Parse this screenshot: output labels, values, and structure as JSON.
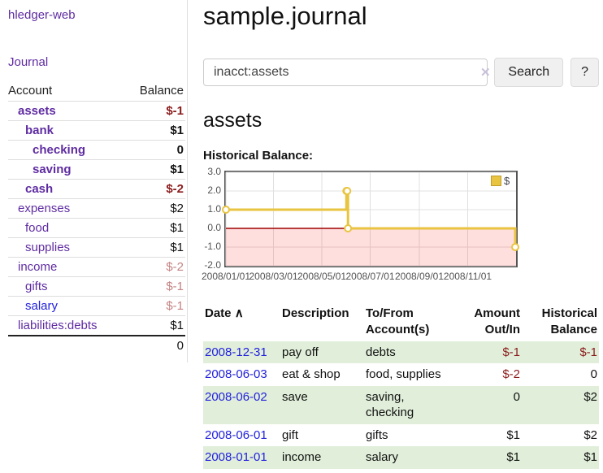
{
  "sidebar": {
    "app_title": "hledger-web",
    "journal_label": "Journal",
    "accounts_table": {
      "header_account": "Account",
      "header_balance": "Balance",
      "rows": [
        {
          "name": "assets",
          "depth": 1,
          "bold": true,
          "link": "purple",
          "balance": "$-1",
          "balance_style": "neg-strong"
        },
        {
          "name": "bank",
          "depth": 2,
          "bold": true,
          "link": "purple",
          "balance": "$1",
          "balance_style": "pos"
        },
        {
          "name": "checking",
          "depth": 3,
          "bold": true,
          "link": "purple",
          "balance": "0",
          "balance_style": "pos"
        },
        {
          "name": "saving",
          "depth": 3,
          "bold": true,
          "link": "purple",
          "balance": "$1",
          "balance_style": "pos"
        },
        {
          "name": "cash",
          "depth": 2,
          "bold": true,
          "link": "purple",
          "balance": "$-2",
          "balance_style": "neg-strong"
        },
        {
          "name": "expenses",
          "depth": 1,
          "bold": false,
          "link": "purple",
          "balance": "$2",
          "balance_style": "pos"
        },
        {
          "name": "food",
          "depth": 2,
          "bold": false,
          "link": "purple",
          "balance": "$1",
          "balance_style": "pos"
        },
        {
          "name": "supplies",
          "depth": 2,
          "bold": false,
          "link": "purple",
          "balance": "$1",
          "balance_style": "pos"
        },
        {
          "name": "income",
          "depth": 1,
          "bold": false,
          "link": "purple",
          "balance": "$-2",
          "balance_style": "neg-soft"
        },
        {
          "name": "gifts",
          "depth": 2,
          "bold": false,
          "link": "purple",
          "balance": "$-1",
          "balance_style": "neg-soft"
        },
        {
          "name": "salary",
          "depth": 2,
          "bold": false,
          "link": "blue",
          "balance": "$-1",
          "balance_style": "neg-soft"
        },
        {
          "name": "liabilities:debts",
          "depth": 1,
          "bold": false,
          "link": "purple",
          "balance": "$1",
          "balance_style": "pos"
        }
      ],
      "total": "0"
    }
  },
  "header": {
    "title": "sample.journal"
  },
  "search": {
    "value": "inacct:assets",
    "clear_icon": "✕",
    "button_label": "Search",
    "help_label": "?"
  },
  "account_page": {
    "title": "assets",
    "chart_label": "Historical Balance:"
  },
  "chart_data": {
    "type": "line",
    "title": "Historical Balance",
    "step": true,
    "series": [
      {
        "name": "$",
        "color": "#e9c440",
        "points": [
          [
            "2008-01-01",
            1
          ],
          [
            "2008-06-01",
            2
          ],
          [
            "2008-06-02",
            2
          ],
          [
            "2008-06-03",
            0
          ],
          [
            "2008-12-31",
            -1
          ]
        ]
      }
    ],
    "x_ticks": [
      "2008/01/01",
      "2008/03/01",
      "2008/05/01",
      "2008/07/01",
      "2008/09/01",
      "2008/11/01"
    ],
    "y_ticks": [
      "3.0",
      "2.0",
      "1.0",
      "0.0",
      "-1.0",
      "-2.0"
    ],
    "ylim": [
      -2,
      3
    ],
    "xlim": [
      "2008-01-01",
      "2009-01-01"
    ],
    "grid": true,
    "gridline_color": "#e0e0e0",
    "negative_region_color": "rgba(255,0,0,0.13)",
    "zero_line_color": "#a00000",
    "legend_position": "top-right"
  },
  "register_table": {
    "headers": {
      "date": "Date",
      "sort_indicator": "∧",
      "description": "Description",
      "accounts": "To/From Account(s)",
      "amount": "Amount Out/In",
      "balance": "Historical Balance"
    },
    "rows": [
      {
        "date": "2008-12-31",
        "description": "pay off",
        "accounts": "debts",
        "amount": "$-1",
        "amount_neg": true,
        "balance": "$-1",
        "balance_neg": true
      },
      {
        "date": "2008-06-03",
        "description": "eat & shop",
        "accounts": "food, supplies",
        "amount": "$-2",
        "amount_neg": true,
        "balance": "0",
        "balance_neg": false
      },
      {
        "date": "2008-06-02",
        "description": "save",
        "accounts": "saving, checking",
        "amount": "0",
        "amount_neg": false,
        "balance": "$2",
        "balance_neg": false
      },
      {
        "date": "2008-06-01",
        "description": "gift",
        "accounts": "gifts",
        "amount": "$1",
        "amount_neg": false,
        "balance": "$2",
        "balance_neg": false
      },
      {
        "date": "2008-01-01",
        "description": "income",
        "accounts": "salary",
        "amount": "$1",
        "amount_neg": false,
        "balance": "$1",
        "balance_neg": false
      }
    ]
  }
}
